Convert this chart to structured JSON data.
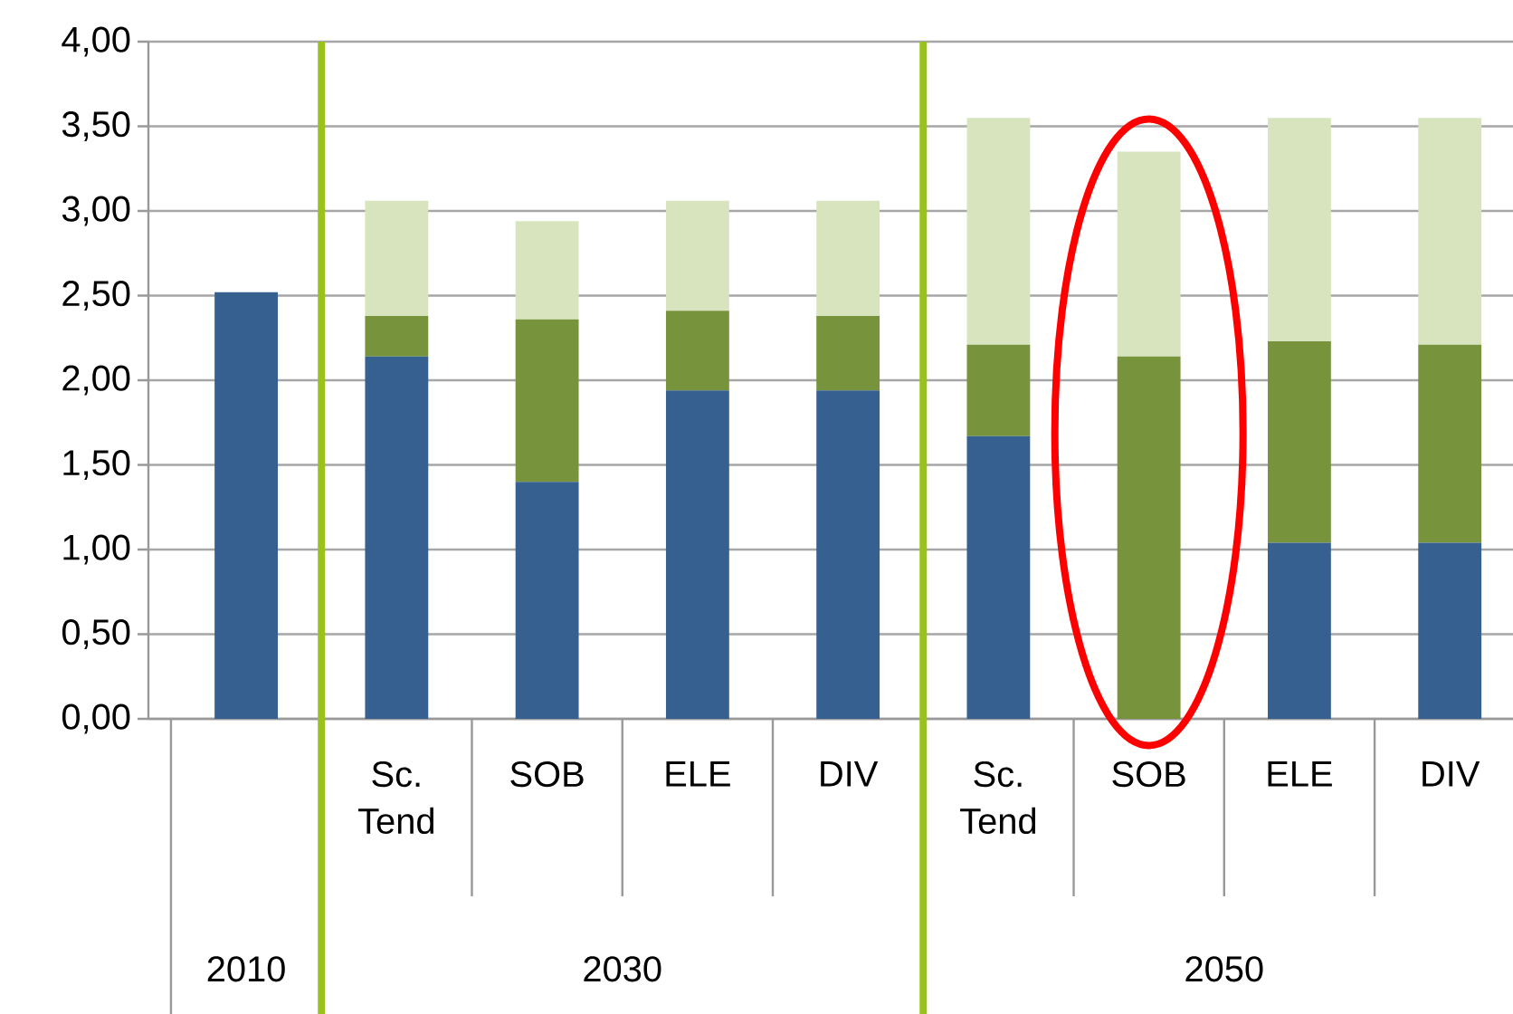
{
  "chart_data": {
    "type": "bar",
    "stacked": true,
    "categories": [
      null,
      "Sc. Tend",
      "SOB",
      "ELE",
      "DIV",
      "Sc. Tend",
      "SOB",
      "ELE",
      "DIV"
    ],
    "series": [
      {
        "color": "#35608f",
        "values": [
          2.52,
          2.14,
          1.4,
          1.94,
          1.94,
          1.67,
          0,
          1.04,
          1.04
        ]
      },
      {
        "color": "#77933c",
        "values": [
          0,
          0.24,
          0.96,
          0.47,
          0.44,
          0.54,
          2.14,
          1.19,
          1.17
        ]
      },
      {
        "color": "#d7e4bd",
        "values": [
          0,
          0.68,
          0.58,
          0.65,
          0.68,
          1.34,
          1.21,
          1.32,
          1.34
        ]
      }
    ],
    "ylim": [
      0,
      4
    ],
    "yticks": [
      {
        "value": 0,
        "label": "0,00"
      },
      {
        "value": 0.5,
        "label": "0,50"
      },
      {
        "value": 1,
        "label": "1,00"
      },
      {
        "value": 1.5,
        "label": "1,50"
      },
      {
        "value": 2,
        "label": "2,00"
      },
      {
        "value": 2.5,
        "label": "2,50"
      },
      {
        "value": 3,
        "label": "3,00"
      },
      {
        "value": 3.5,
        "label": "3,50"
      },
      {
        "value": 4,
        "label": "4,00"
      }
    ],
    "grid": "y",
    "annotations": [
      "2010",
      "2030",
      "2050"
    ]
  }
}
